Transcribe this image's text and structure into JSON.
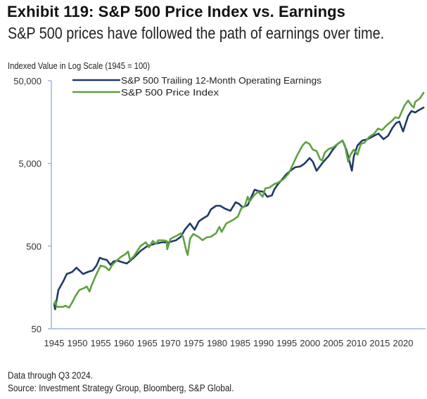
{
  "title": "Exhibit 119: S&P 500 Price Index vs. Earnings",
  "subtitle": "S&P 500 prices have followed the path of earnings over time.",
  "footnote": "Data through Q3 2024.",
  "source": "Source: Investment Strategy Group, Bloomberg, S&P Global.",
  "colors": {
    "earnings": "#1f3a68",
    "price": "#5fa142",
    "axis": "#9db5db"
  },
  "chart_data": {
    "type": "line",
    "title": "Exhibit 119: S&P 500 Price Index vs. Earnings",
    "subtitle": "S&P 500 prices have followed the path of earnings over time.",
    "ylabel": "Indexed Value in Log Scale (1945 = 100)",
    "xlabel": "",
    "yscale": "log",
    "ylim": [
      50,
      50000
    ],
    "xlim": [
      1944.4,
      2024.9
    ],
    "yticks": [
      50,
      500,
      5000,
      50000
    ],
    "ytick_labels": [
      "50",
      "500",
      "5,000",
      "50,000"
    ],
    "xticks": [
      1945,
      1950,
      1955,
      1960,
      1965,
      1970,
      1975,
      1980,
      1985,
      1990,
      1995,
      2000,
      2005,
      2010,
      2015,
      2020
    ],
    "xtick_labels": [
      "1945",
      "1950",
      "1955",
      "1960",
      "1965",
      "1970",
      "1975",
      "1980",
      "1985",
      "1990",
      "1995",
      "2000",
      "2005",
      "2010",
      "2015",
      "2020"
    ],
    "grid": false,
    "legend_position": "top-left",
    "series": [
      {
        "name": "S&P 500 Trailing 12-Month Operating Earnings",
        "color": "#1f3a68",
        "points": [
          [
            1945.0,
            100
          ],
          [
            1945.2,
            86
          ],
          [
            1945.9,
            147
          ],
          [
            1947.0,
            189
          ],
          [
            1947.7,
            230
          ],
          [
            1948.5,
            239
          ],
          [
            1948.9,
            244
          ],
          [
            1949.8,
            274
          ],
          [
            1950.4,
            254
          ],
          [
            1951.2,
            230
          ],
          [
            1952.3,
            244
          ],
          [
            1953.3,
            254
          ],
          [
            1954.1,
            291
          ],
          [
            1954.8,
            361
          ],
          [
            1955.6,
            347
          ],
          [
            1956.3,
            340
          ],
          [
            1957.1,
            297
          ],
          [
            1957.8,
            327
          ],
          [
            1958.6,
            334
          ],
          [
            1959.5,
            321
          ],
          [
            1960.6,
            308
          ],
          [
            1962.1,
            361
          ],
          [
            1963.6,
            439
          ],
          [
            1965.1,
            503
          ],
          [
            1966.6,
            533
          ],
          [
            1968.1,
            555
          ],
          [
            1969.6,
            555
          ],
          [
            1971.2,
            589
          ],
          [
            1972.2,
            649
          ],
          [
            1973.1,
            789
          ],
          [
            1974.2,
            940
          ],
          [
            1975.2,
            789
          ],
          [
            1976.1,
            998
          ],
          [
            1977.2,
            1099
          ],
          [
            1978.0,
            1167
          ],
          [
            1978.7,
            1391
          ],
          [
            1979.8,
            1535
          ],
          [
            1980.7,
            1535
          ],
          [
            1981.7,
            1419
          ],
          [
            1982.9,
            1337
          ],
          [
            1984.0,
            1692
          ],
          [
            1984.7,
            1627
          ],
          [
            1985.5,
            1475
          ],
          [
            1986.6,
            1564
          ],
          [
            1987.4,
            1978
          ],
          [
            1988.1,
            2405
          ],
          [
            1989.0,
            2312
          ],
          [
            1990.0,
            2270
          ],
          [
            1990.8,
            1978
          ],
          [
            1991.8,
            2056
          ],
          [
            1992.3,
            2405
          ],
          [
            1993.0,
            2760
          ],
          [
            1993.8,
            3104
          ],
          [
            1994.9,
            3700
          ],
          [
            1995.8,
            4080
          ],
          [
            1996.8,
            4500
          ],
          [
            1997.9,
            4590
          ],
          [
            1998.8,
            4965
          ],
          [
            1999.9,
            5804
          ],
          [
            2000.6,
            5260
          ],
          [
            2001.4,
            4080
          ],
          [
            2002.1,
            4590
          ],
          [
            2002.9,
            5260
          ],
          [
            2004.0,
            6150
          ],
          [
            2004.9,
            7345
          ],
          [
            2005.9,
            8590
          ],
          [
            2007.0,
            9460
          ],
          [
            2007.8,
            7345
          ],
          [
            2008.5,
            5260
          ],
          [
            2009.0,
            4080
          ],
          [
            2009.4,
            6040
          ],
          [
            2010.2,
            8260
          ],
          [
            2011.2,
            9460
          ],
          [
            2012.4,
            9840
          ],
          [
            2013.8,
            10840
          ],
          [
            2014.7,
            11510
          ],
          [
            2015.8,
            9840
          ],
          [
            2016.8,
            10840
          ],
          [
            2017.7,
            13460
          ],
          [
            2018.5,
            15420
          ],
          [
            2019.2,
            16030
          ],
          [
            2020.0,
            12190
          ],
          [
            2020.5,
            14830
          ],
          [
            2021.1,
            18750
          ],
          [
            2021.8,
            21530
          ],
          [
            2022.6,
            20700
          ],
          [
            2023.3,
            21930
          ],
          [
            2024.4,
            23710
          ]
        ]
      },
      {
        "name": "S&P 500 Price Index",
        "color": "#5fa142",
        "points": [
          [
            1945.0,
            100
          ],
          [
            1945.3,
            109
          ],
          [
            1945.5,
            92
          ],
          [
            1947.0,
            92
          ],
          [
            1947.4,
            95
          ],
          [
            1948.2,
            90
          ],
          [
            1948.9,
            105
          ],
          [
            1949.7,
            128
          ],
          [
            1950.4,
            147
          ],
          [
            1951.5,
            156
          ],
          [
            1952.0,
            162
          ],
          [
            1952.6,
            141
          ],
          [
            1953.0,
            165
          ],
          [
            1954.1,
            230
          ],
          [
            1955.0,
            291
          ],
          [
            1956.0,
            280
          ],
          [
            1956.8,
            254
          ],
          [
            1957.5,
            297
          ],
          [
            1958.6,
            340
          ],
          [
            1959.5,
            375
          ],
          [
            1960.3,
            398
          ],
          [
            1960.9,
            430
          ],
          [
            1961.3,
            340
          ],
          [
            1962.1,
            375
          ],
          [
            1963.6,
            503
          ],
          [
            1964.7,
            555
          ],
          [
            1965.4,
            484
          ],
          [
            1966.2,
            577
          ],
          [
            1966.9,
            533
          ],
          [
            1967.4,
            589
          ],
          [
            1968.4,
            589
          ],
          [
            1969.2,
            577
          ],
          [
            1969.3,
            456
          ],
          [
            1970.0,
            612
          ],
          [
            1971.5,
            675
          ],
          [
            1972.2,
            715
          ],
          [
            1972.7,
            649
          ],
          [
            1973.4,
            439
          ],
          [
            1973.7,
            390
          ],
          [
            1974.2,
            612
          ],
          [
            1974.9,
            700
          ],
          [
            1976.0,
            649
          ],
          [
            1976.9,
            589
          ],
          [
            1977.7,
            636
          ],
          [
            1978.7,
            649
          ],
          [
            1979.8,
            715
          ],
          [
            1980.5,
            853
          ],
          [
            1981.0,
            743
          ],
          [
            1982.0,
            940
          ],
          [
            1982.9,
            998
          ],
          [
            1983.7,
            1057
          ],
          [
            1984.5,
            1143
          ],
          [
            1985.2,
            1419
          ],
          [
            1986.0,
            1535
          ],
          [
            1986.6,
            1978
          ],
          [
            1987.0,
            1726
          ],
          [
            1988.1,
            2099
          ],
          [
            1988.9,
            2270
          ],
          [
            1989.8,
            1978
          ],
          [
            1990.4,
            2500
          ],
          [
            1991.3,
            2553
          ],
          [
            1992.3,
            2812
          ],
          [
            1993.1,
            2925
          ],
          [
            1994.3,
            3225
          ],
          [
            1995.4,
            3775
          ],
          [
            1996.4,
            4965
          ],
          [
            1997.3,
            6400
          ],
          [
            1998.4,
            8260
          ],
          [
            1999.1,
            9100
          ],
          [
            1999.9,
            8590
          ],
          [
            2000.6,
            7345
          ],
          [
            2001.4,
            7060
          ],
          [
            2002.2,
            5580
          ],
          [
            2002.6,
            5470
          ],
          [
            2003.2,
            6790
          ],
          [
            2004.0,
            7480
          ],
          [
            2004.9,
            7780
          ],
          [
            2005.9,
            8590
          ],
          [
            2007.0,
            9460
          ],
          [
            2007.5,
            8260
          ],
          [
            2008.2,
            5260
          ],
          [
            2008.7,
            6400
          ],
          [
            2009.4,
            7345
          ],
          [
            2010.2,
            6400
          ],
          [
            2010.9,
            8590
          ],
          [
            2011.7,
            8920
          ],
          [
            2012.7,
            10430
          ],
          [
            2013.8,
            11510
          ],
          [
            2014.6,
            13190
          ],
          [
            2015.5,
            12690
          ],
          [
            2016.5,
            14550
          ],
          [
            2017.6,
            16350
          ],
          [
            2018.3,
            18040
          ],
          [
            2019.1,
            17700
          ],
          [
            2019.5,
            19900
          ],
          [
            2020.3,
            25180
          ],
          [
            2021.1,
            28840
          ],
          [
            2021.8,
            25180
          ],
          [
            2022.3,
            23710
          ],
          [
            2022.6,
            27730
          ],
          [
            2023.6,
            30620
          ],
          [
            2024.4,
            35800
          ]
        ]
      }
    ]
  }
}
